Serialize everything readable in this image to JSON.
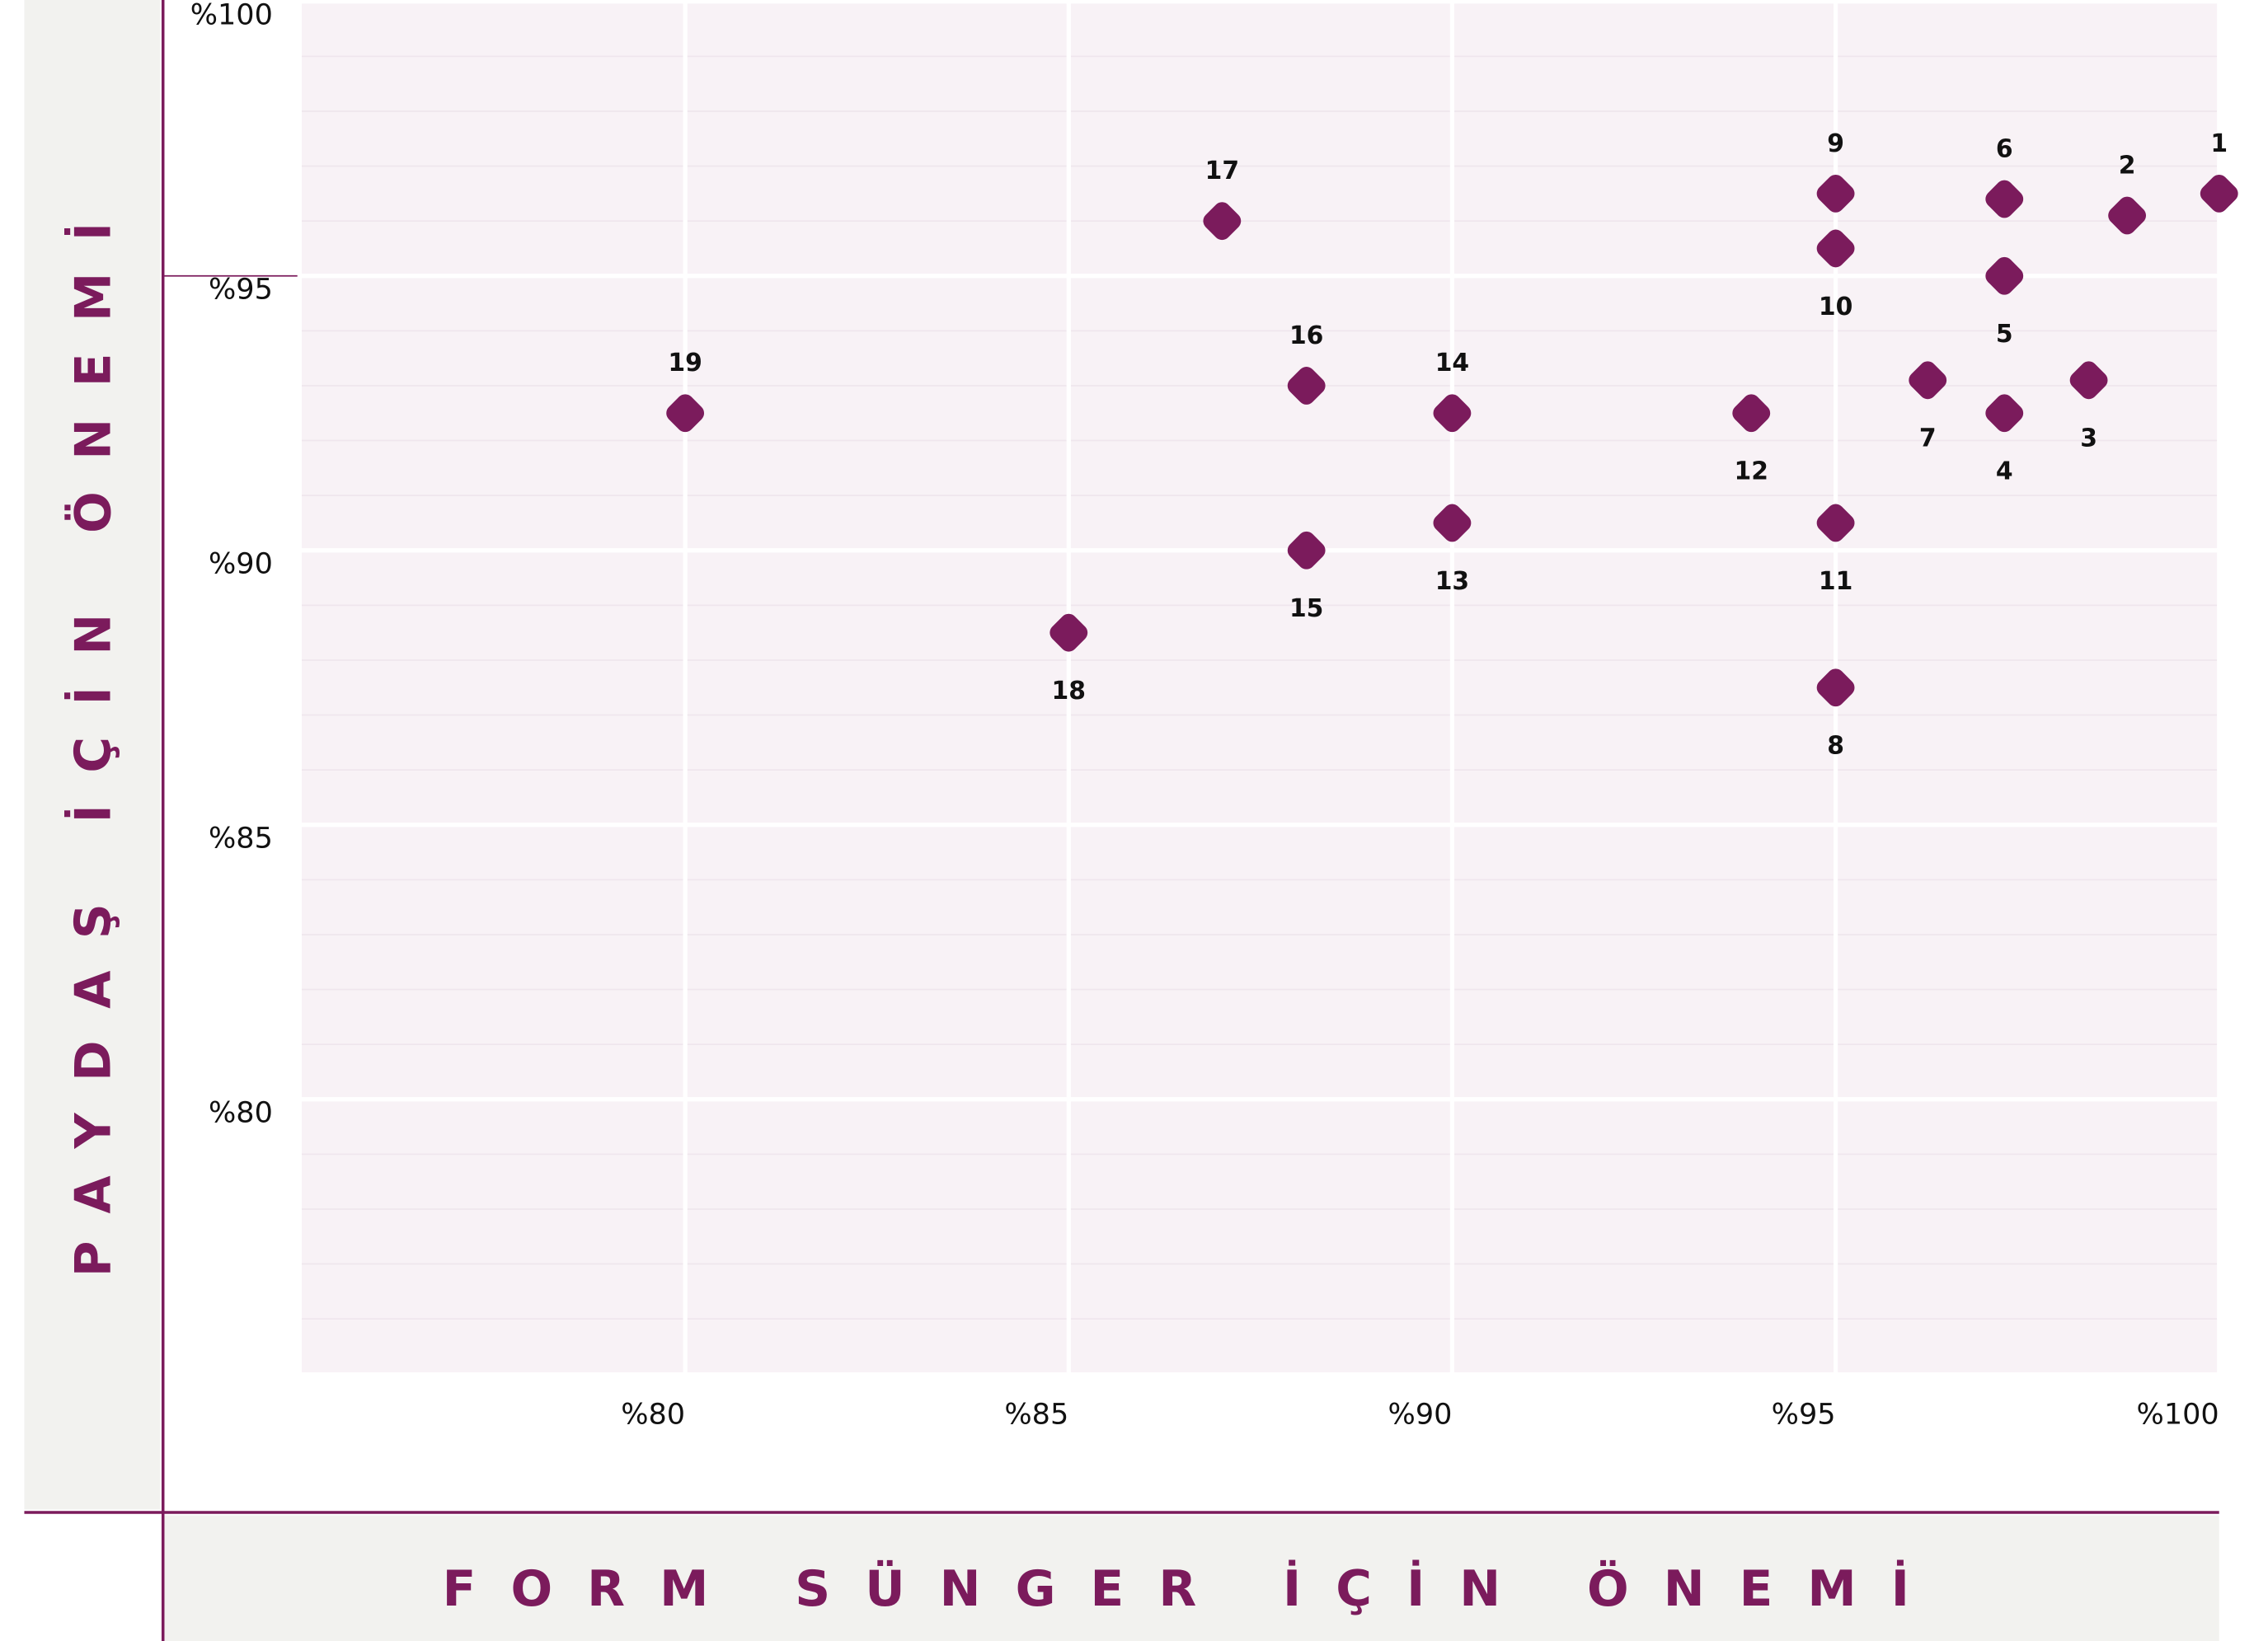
{
  "chart_data": {
    "type": "scatter",
    "xlabel": "FORM SÜNGER İÇİN ÖNEMİ",
    "ylabel": "PAYDAŞ İÇİN ÖNEMİ",
    "labels": [
      "1",
      "2",
      "3",
      "4",
      "5",
      "6",
      "7",
      "8",
      "9",
      "10",
      "11",
      "12",
      "13",
      "14",
      "15",
      "16",
      "17",
      "18",
      "19"
    ],
    "x": [
      100,
      98.8,
      98.3,
      97.2,
      97.2,
      97.2,
      96.2,
      95,
      95,
      95,
      95,
      93.9,
      90,
      90,
      88.1,
      88.1,
      87,
      85,
      80
    ],
    "y": [
      96.5,
      96.1,
      93.1,
      92.5,
      95,
      96.4,
      93.1,
      87.5,
      96.5,
      95.5,
      90.5,
      92.5,
      90.5,
      92.5,
      90,
      93,
      96,
      88.5,
      92.5
    ],
    "color": "#7b1b5c",
    "xlim": [
      75,
      100
    ],
    "ylim": [
      75,
      100
    ],
    "xticks": [
      {
        "value": 80,
        "label": "%80"
      },
      {
        "value": 85,
        "label": "%85"
      },
      {
        "value": 90,
        "label": "%90"
      },
      {
        "value": 95,
        "label": "%95"
      },
      {
        "value": 100,
        "label": "%100"
      }
    ],
    "yticks": [
      {
        "value": 80,
        "label": "%80"
      },
      {
        "value": 85,
        "label": "%85"
      },
      {
        "value": 90,
        "label": "%90"
      },
      {
        "value": 95,
        "label": "%95"
      },
      {
        "value": 100,
        "label": "%100"
      }
    ],
    "minor_yticks": [
      76,
      77,
      78,
      79,
      81,
      82,
      83,
      84,
      86,
      87,
      88,
      89,
      91,
      92,
      93,
      94,
      96,
      97,
      98,
      99
    ],
    "grid": true
  }
}
